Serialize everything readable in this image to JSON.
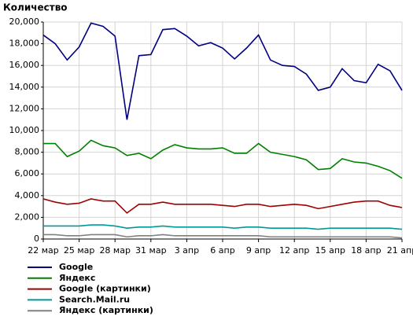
{
  "chart_data": {
    "type": "line",
    "title": "Количество",
    "categories": [
      "22 мар",
      null,
      null,
      "25 мар",
      null,
      null,
      "28 мар",
      null,
      null,
      "31 мар",
      null,
      null,
      "3 апр",
      null,
      null,
      "6 апр",
      null,
      null,
      "9 апр",
      null,
      null,
      "12 апр",
      null,
      null,
      "15 апр",
      null,
      null,
      "18 апр",
      null,
      null,
      "21 апр"
    ],
    "ylim": [
      0,
      20000
    ],
    "yticks": [
      0,
      {
        "value": 2000,
        "label": "2,000"
      },
      {
        "value": 4000,
        "label": "4,000"
      },
      {
        "value": 6000,
        "label": "6,000"
      },
      {
        "value": 8000,
        "label": "8,000"
      },
      {
        "value": 10000,
        "label": "10,000"
      },
      {
        "value": 12000,
        "label": "12,000"
      },
      {
        "value": 14000,
        "label": "14,000"
      },
      {
        "value": 16000,
        "label": "16,000"
      },
      {
        "value": 18000,
        "label": "18,000"
      },
      {
        "value": 20000,
        "label": "20,000"
      }
    ],
    "grid": true,
    "series": [
      {
        "name": "Google",
        "color": "#000080",
        "values": [
          18800,
          18000,
          16500,
          17700,
          19900,
          19600,
          18700,
          11000,
          16900,
          17000,
          19300,
          19400,
          18700,
          17800,
          18100,
          17600,
          16600,
          17600,
          18800,
          16500,
          16000,
          15900,
          15200,
          13700,
          14000,
          15700,
          14600,
          14400,
          16100,
          15500,
          13700
        ]
      },
      {
        "name": "Яндекс",
        "color": "#008000",
        "values": [
          8800,
          8800,
          7600,
          8100,
          9100,
          8600,
          8400,
          7700,
          7900,
          7400,
          8200,
          8700,
          8400,
          8300,
          8300,
          8400,
          7900,
          7900,
          8800,
          8000,
          7800,
          7600,
          7300,
          6400,
          6500,
          7400,
          7100,
          7000,
          6700,
          6300,
          5600
        ]
      },
      {
        "name": "Google (картинки)",
        "color": "#a00000",
        "values": [
          3700,
          3400,
          3200,
          3300,
          3700,
          3500,
          3500,
          2400,
          3200,
          3200,
          3400,
          3200,
          3200,
          3200,
          3200,
          3100,
          3000,
          3200,
          3200,
          3000,
          3100,
          3200,
          3100,
          2800,
          3000,
          3200,
          3400,
          3500,
          3500,
          3100,
          2900
        ]
      },
      {
        "name": "Search.Mail.ru",
        "color": "#009999",
        "values": [
          1200,
          1200,
          1200,
          1200,
          1300,
          1300,
          1200,
          1000,
          1100,
          1100,
          1200,
          1100,
          1100,
          1100,
          1100,
          1100,
          1000,
          1100,
          1100,
          1000,
          1000,
          1000,
          1000,
          900,
          1000,
          1000,
          1000,
          1000,
          1000,
          1000,
          900
        ]
      },
      {
        "name": "Яндекс (картинки)",
        "color": "#808080",
        "values": [
          400,
          400,
          300,
          300,
          400,
          400,
          400,
          200,
          300,
          300,
          400,
          300,
          300,
          300,
          300,
          300,
          300,
          300,
          300,
          200,
          200,
          200,
          200,
          200,
          200,
          200,
          200,
          200,
          200,
          200,
          100
        ]
      }
    ]
  }
}
